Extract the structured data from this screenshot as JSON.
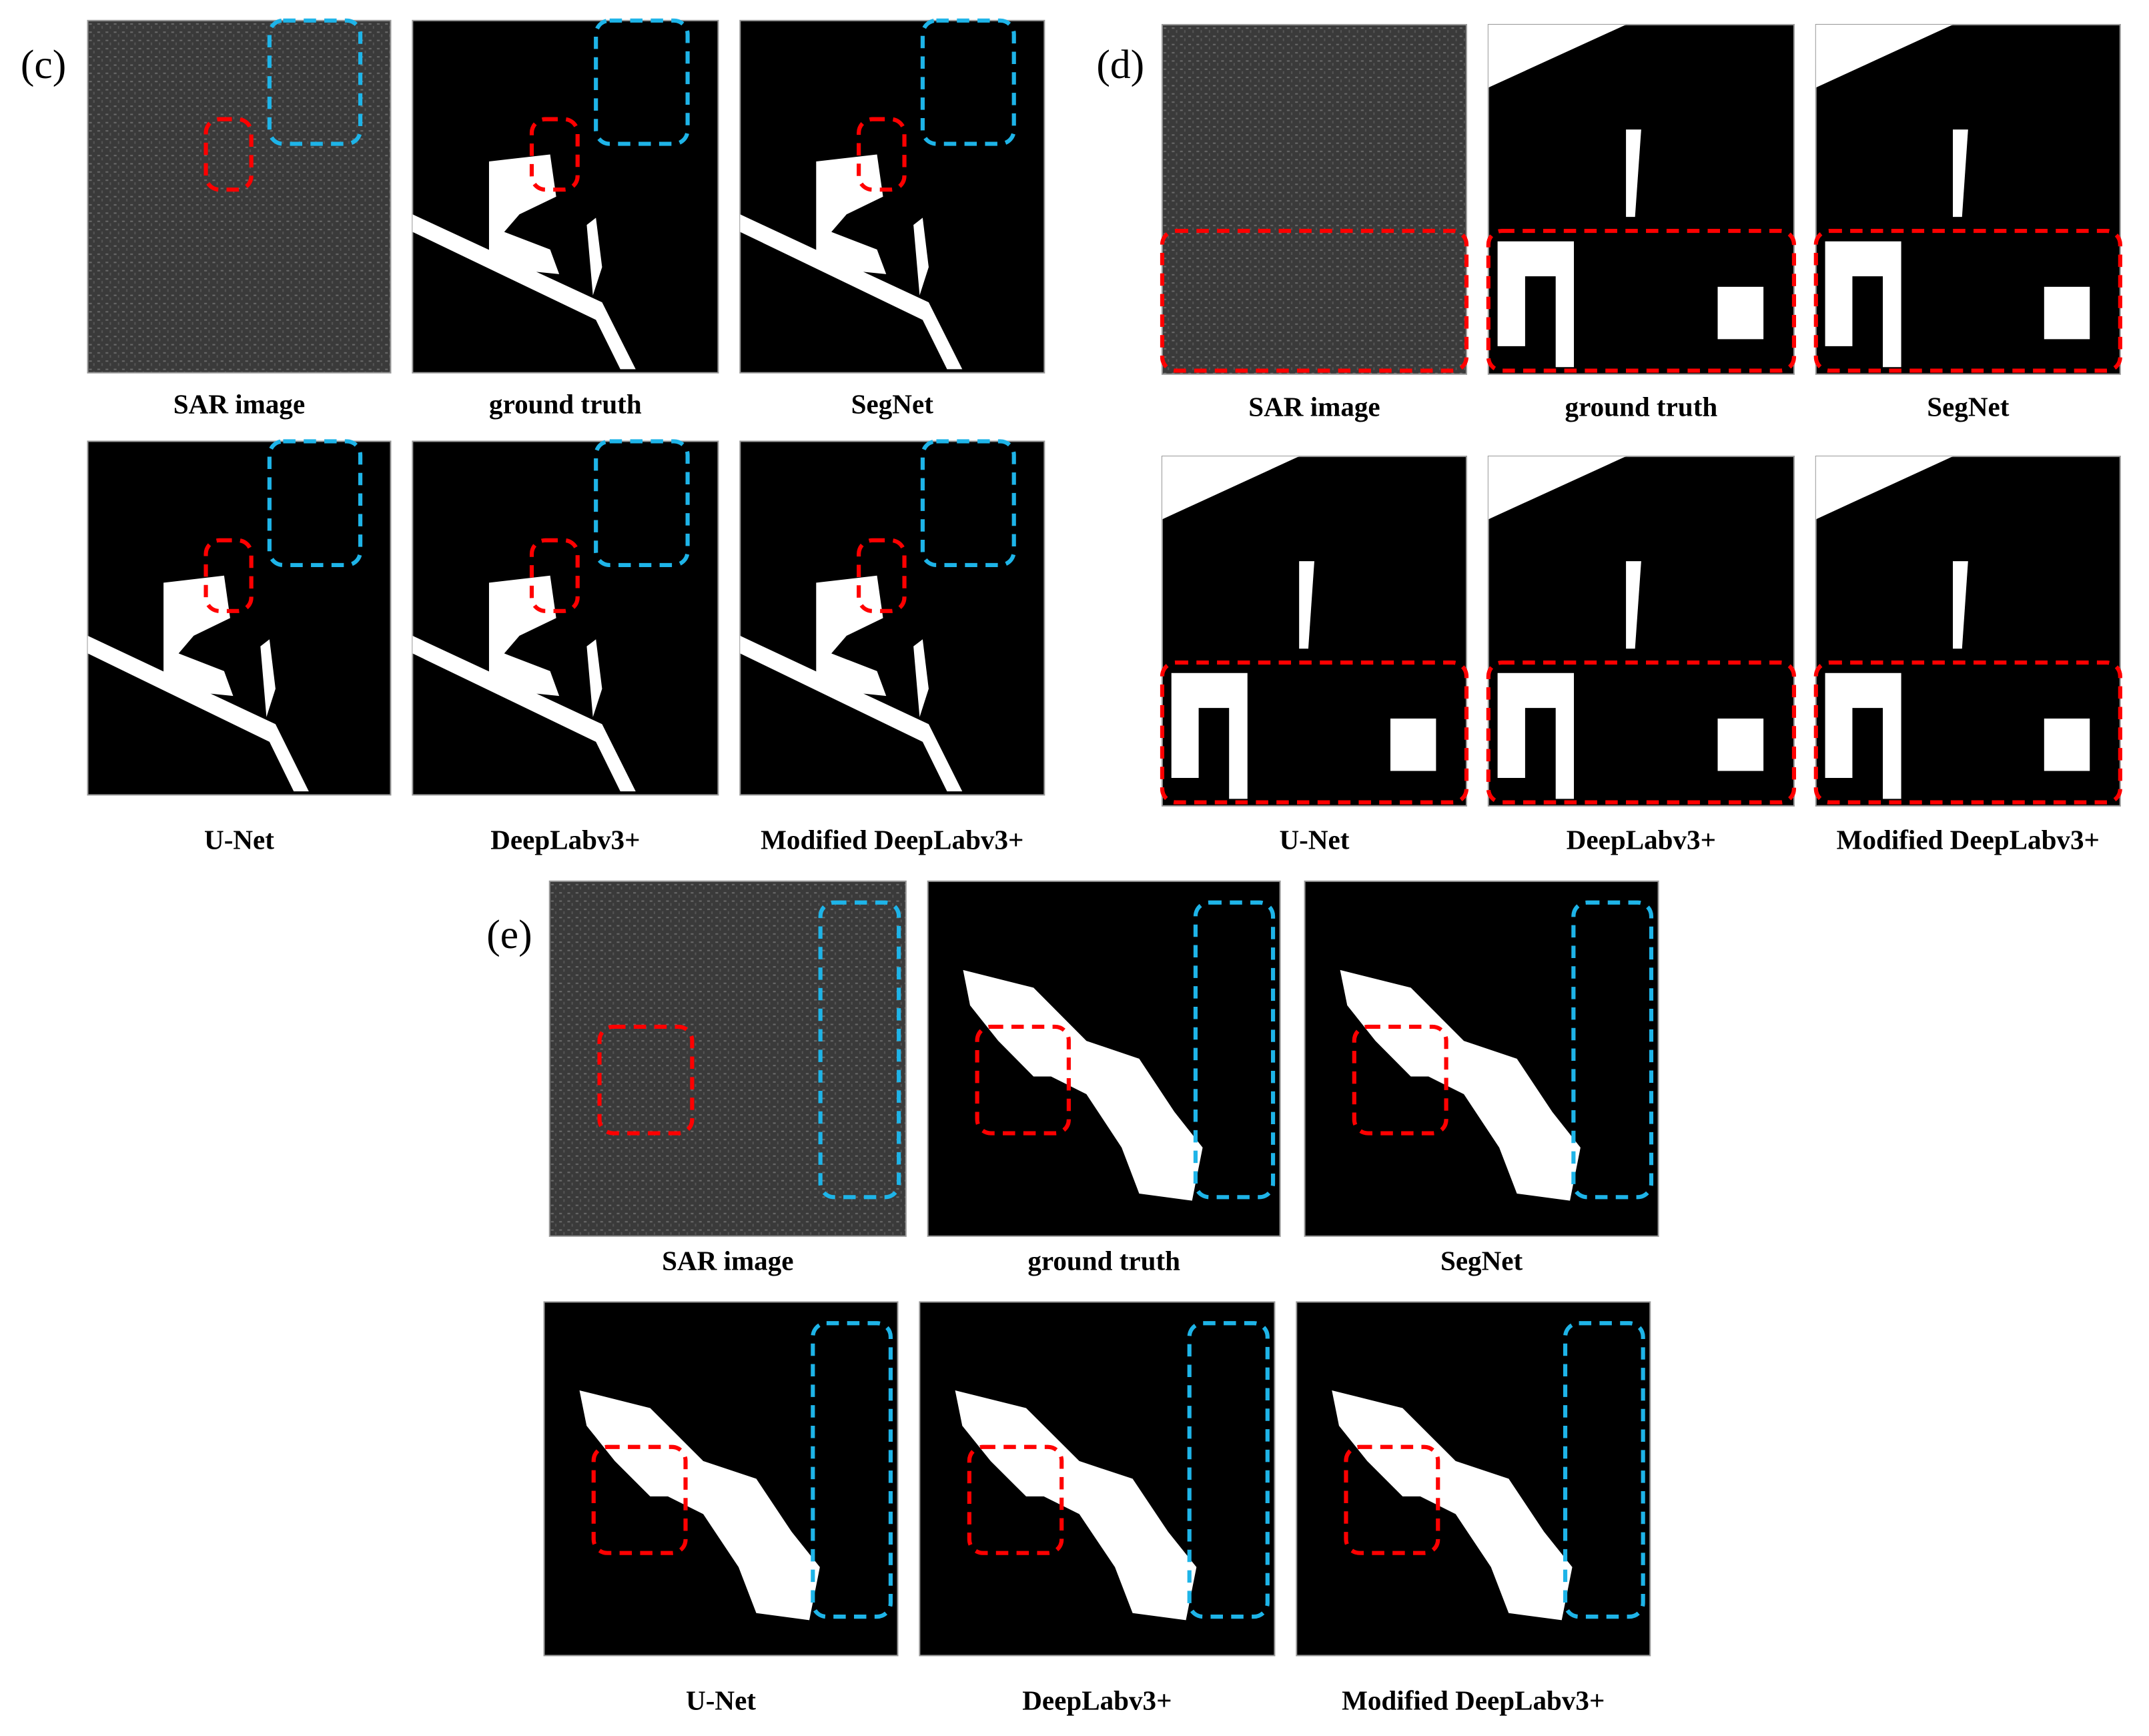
{
  "panels": [
    {
      "label": "(c)",
      "captions": [
        "SAR image",
        "ground truth",
        "SegNet",
        "U-Net",
        "DeepLabv3+",
        "Modified DeepLabv3+"
      ]
    },
    {
      "label": "(d)",
      "captions": [
        "SAR image",
        "ground truth",
        "SegNet",
        "U-Net",
        "DeepLabv3+",
        "Modified DeepLabv3+"
      ]
    },
    {
      "label": "(e)",
      "captions": [
        "SAR image",
        "ground truth",
        "SegNet",
        "U-Net",
        "DeepLabv3+",
        "Modified DeepLabv3+"
      ]
    }
  ]
}
